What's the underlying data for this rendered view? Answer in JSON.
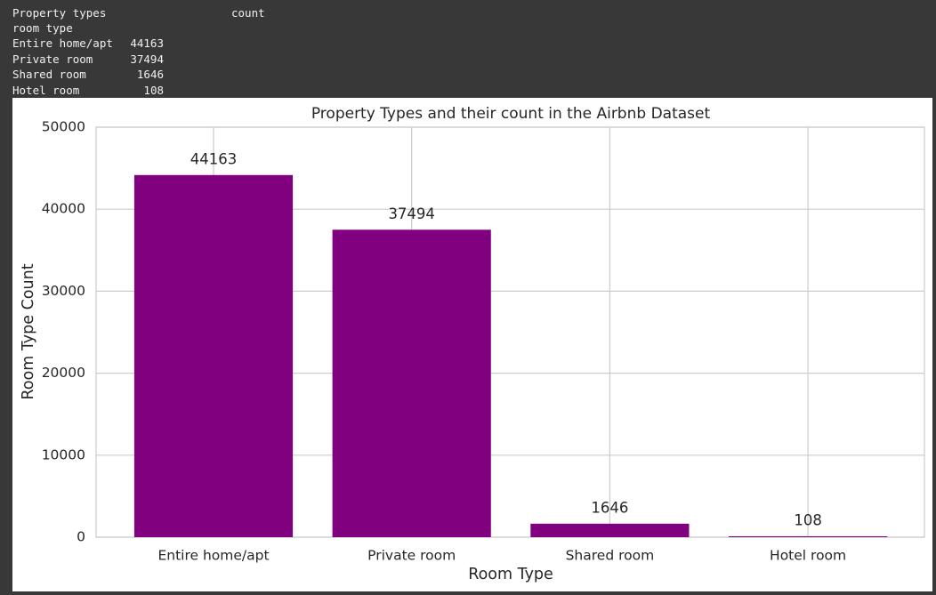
{
  "console": {
    "header": [
      "Property types",
      "count"
    ],
    "index_name": "room type",
    "rows": [
      [
        "Entire home/apt",
        44163
      ],
      [
        "Private room",
        37494
      ],
      [
        "Shared room",
        1646
      ],
      [
        "Hotel room",
        108
      ]
    ]
  },
  "chart_data": {
    "type": "bar",
    "title": "Property Types and their count in the Airbnb Dataset",
    "xlabel": "Room Type",
    "ylabel": "Room Type Count",
    "categories": [
      "Entire home/apt",
      "Private room",
      "Shared room",
      "Hotel room"
    ],
    "values": [
      44163,
      37494,
      1646,
      108
    ],
    "color": "#800080",
    "ylim": [
      0,
      50000
    ],
    "yticks": [
      0,
      10000,
      20000,
      30000,
      40000,
      50000
    ],
    "grid": true
  }
}
